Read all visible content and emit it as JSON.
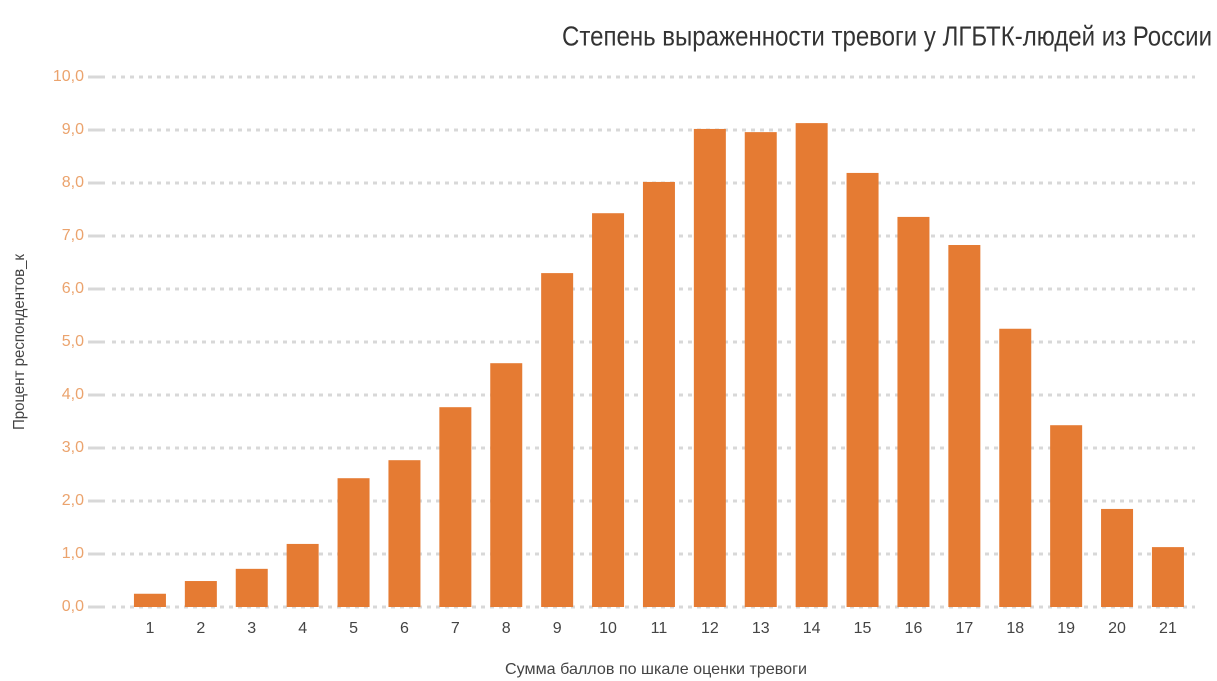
{
  "chart_data": {
    "type": "bar",
    "title": "Степень выраженности тревоги у ЛГБТК-людей из России",
    "x_label": "Сумма баллов по шкале оценки тревоги",
    "y_label": "Процент респондентов_к",
    "categories": [
      "1",
      "2",
      "3",
      "4",
      "5",
      "6",
      "7",
      "8",
      "9",
      "10",
      "11",
      "12",
      "13",
      "14",
      "15",
      "16",
      "17",
      "18",
      "19",
      "20",
      "21"
    ],
    "values": [
      0.25,
      0.49,
      0.72,
      1.19,
      2.43,
      2.77,
      3.77,
      4.6,
      6.3,
      7.43,
      8.02,
      9.02,
      8.96,
      9.13,
      8.19,
      7.36,
      6.83,
      5.25,
      3.43,
      1.85,
      1.13
    ],
    "color": "#e57b33",
    "ylim": [
      0,
      10
    ],
    "yticks": [
      {
        "value": 0,
        "label": "0,0"
      },
      {
        "value": 1,
        "label": "1,0"
      },
      {
        "value": 2,
        "label": "2,0"
      },
      {
        "value": 3,
        "label": "3,0"
      },
      {
        "value": 4,
        "label": "4,0"
      },
      {
        "value": 5,
        "label": "5,0"
      },
      {
        "value": 6,
        "label": "6,0"
      },
      {
        "value": 7,
        "label": "7,0"
      },
      {
        "value": 8,
        "label": "8,0"
      },
      {
        "value": 9,
        "label": "9,0"
      },
      {
        "value": 10,
        "label": "10,0"
      }
    ],
    "grid": true
  }
}
